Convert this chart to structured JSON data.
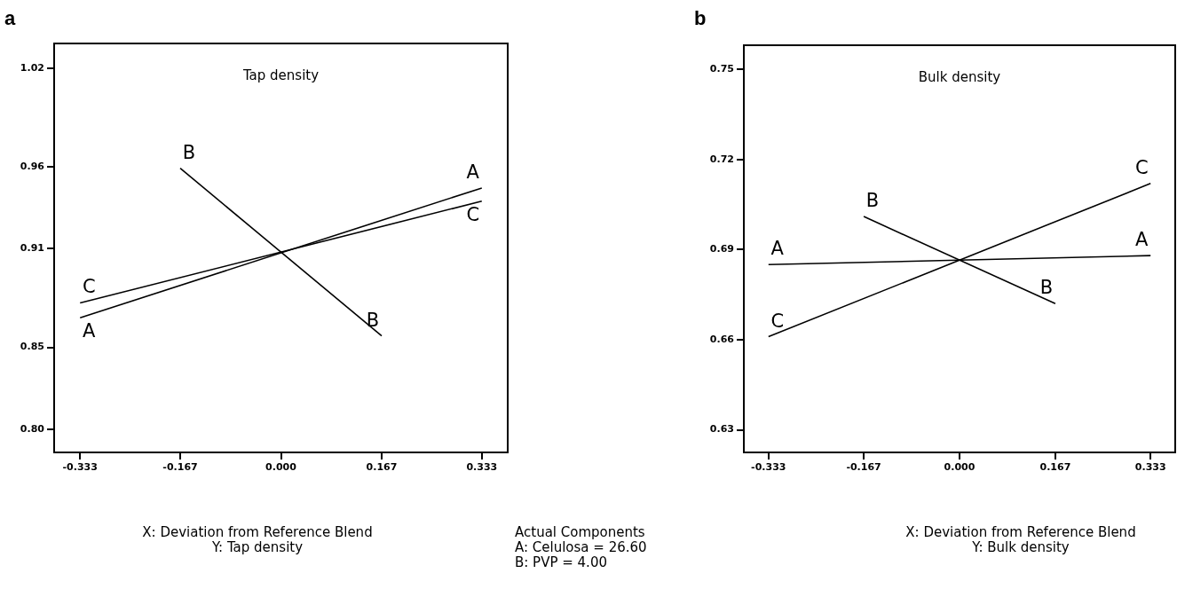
{
  "chart_data": [
    {
      "type": "line",
      "title": "a",
      "subtitle": "Tap density",
      "xlabel": "X: Deviation from Reference Blend",
      "series": [
        {
          "name": "A",
          "color": "#000000",
          "x": [
            -0.333,
            0.333
          ],
          "values": [
            0.868,
            0.947
          ]
        },
        {
          "name": "B",
          "color": "#000000",
          "x": [
            -0.167,
            0.167
          ],
          "values": [
            0.959,
            0.857
          ]
        },
        {
          "name": "C",
          "color": "#000000",
          "x": [
            -0.333,
            0.333
          ],
          "values": [
            0.877,
            0.939
          ]
        }
      ],
      "xlim": [
        -0.376,
        0.376
      ],
      "xticks": [
        {
          "value": -0.333,
          "label": "-0.333"
        },
        {
          "value": -0.167,
          "label": "-0.167"
        },
        {
          "value": 0,
          "label": "0.000"
        },
        {
          "value": 0.167,
          "label": "0.167"
        },
        {
          "value": 0.333,
          "label": "0.333"
        }
      ],
      "ylim": [
        0.786,
        1.035
      ],
      "yticks": [
        {
          "value": 0.8,
          "label": "0.80"
        },
        {
          "value": 0.85,
          "label": "0.85"
        },
        {
          "value": 0.91,
          "label": "0.91"
        },
        {
          "value": 0.96,
          "label": "0.96"
        },
        {
          "value": 1.02,
          "label": "1.02"
        }
      ],
      "grid": false,
      "legend": false,
      "marker": "none",
      "line_style": "solid",
      "annotations": [
        "Y: Tap density",
        "Actual Components",
        "A: Celulosa = 26.60",
        "B: PVP = 4.00"
      ]
    },
    {
      "type": "line",
      "title": "b",
      "subtitle": "Bulk density",
      "xlabel": "X: Deviation from Reference Blend",
      "series": [
        {
          "name": "A",
          "color": "#000000",
          "x": [
            -0.333,
            0.333
          ],
          "values": [
            0.685,
            0.688
          ]
        },
        {
          "name": "B",
          "color": "#000000",
          "x": [
            -0.167,
            0.167
          ],
          "values": [
            0.701,
            0.672
          ]
        },
        {
          "name": "C",
          "color": "#000000",
          "x": [
            -0.333,
            0.333
          ],
          "values": [
            0.661,
            0.712
          ]
        }
      ],
      "xlim": [
        -0.376,
        0.376
      ],
      "xticks": [
        {
          "value": -0.333,
          "label": "-0.333"
        },
        {
          "value": -0.167,
          "label": "-0.167"
        },
        {
          "value": 0,
          "label": "0.000"
        },
        {
          "value": 0.167,
          "label": "0.167"
        },
        {
          "value": 0.333,
          "label": "0.333"
        }
      ],
      "ylim": [
        0.6225,
        0.758
      ],
      "yticks": [
        {
          "value": 0.63,
          "label": "0.63"
        },
        {
          "value": 0.66,
          "label": "0.66"
        },
        {
          "value": 0.69,
          "label": "0.69"
        },
        {
          "value": 0.72,
          "label": "0.72"
        },
        {
          "value": 0.75,
          "label": "0.75"
        }
      ],
      "grid": false,
      "legend": false,
      "marker": "none",
      "line_style": "solid",
      "annotations": [
        "Y: Bulk density"
      ]
    }
  ]
}
